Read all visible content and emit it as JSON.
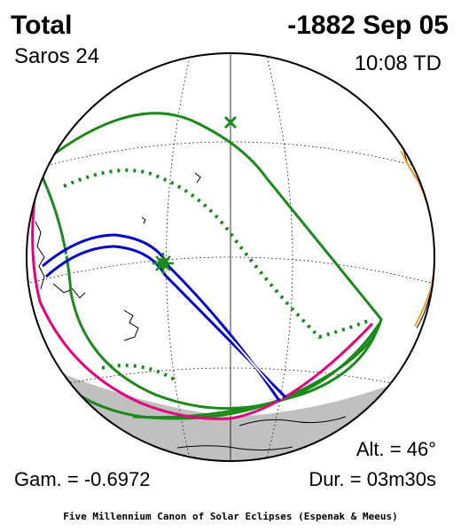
{
  "header": {
    "eclipse_type": "Total",
    "saros_label": "Saros  24",
    "date": "-1882 Sep 05",
    "time": "10:08 TD"
  },
  "stats": {
    "altitude": "Alt. = 46°",
    "gamma": "Gam. = -0.6972",
    "duration": "Dur. = 03m30s"
  },
  "footer": {
    "credit": "Five Millennium Canon of Solar Eclipses (Espenak & Meeus)"
  },
  "colors": {
    "penumbra_limits": "#1a8a1a",
    "central_path": "#0000cc",
    "rise_set_curve": "#e6007e",
    "night_side": "#c0c0c0",
    "coastline": "#000000",
    "land_highlight": "#f0a020"
  },
  "icons": {
    "greatest_eclipse": "green-star-marker",
    "subsolar_point": "green-x-marker"
  }
}
